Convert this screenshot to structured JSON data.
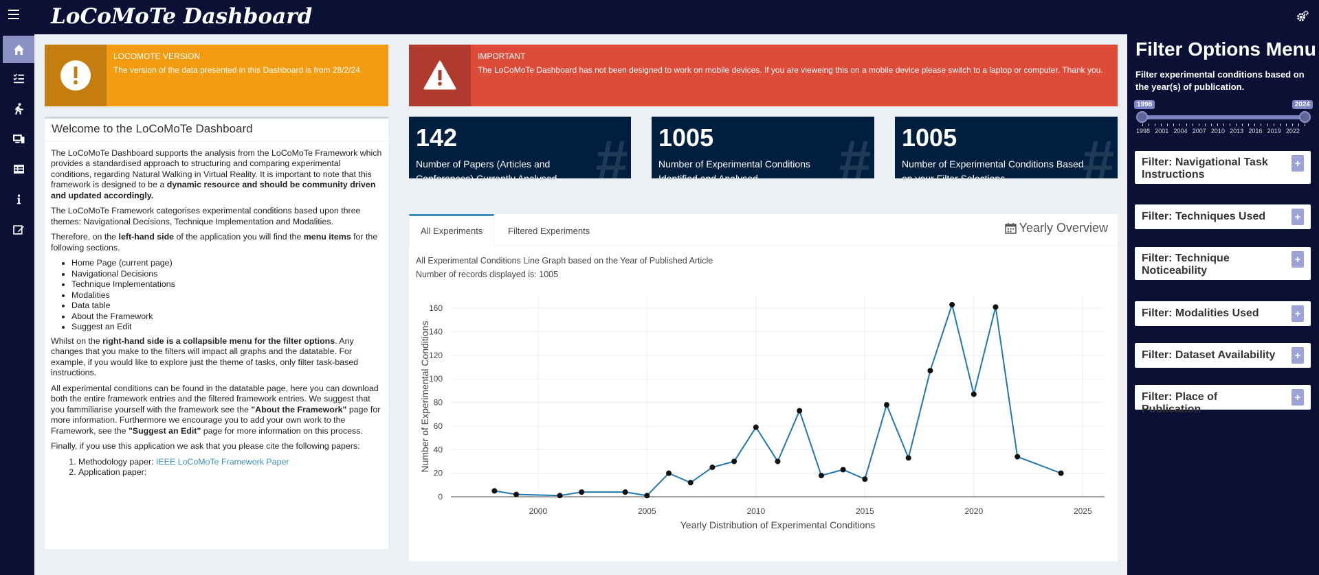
{
  "app": {
    "title": "LoCoMoTe Dashboard"
  },
  "sidebar_left": {
    "items": [
      {
        "name": "home-icon",
        "active": true
      },
      {
        "name": "tasks-icon"
      },
      {
        "name": "walking-icon"
      },
      {
        "name": "devices-icon"
      },
      {
        "name": "table-icon"
      },
      {
        "name": "info-icon"
      },
      {
        "name": "edit-icon"
      }
    ]
  },
  "version_box": {
    "heading": "LOCOMOTE VERSION",
    "text": "The version of the data presented in this Dashboard is from 28/2/24.",
    "color": "#f39c12"
  },
  "important_box": {
    "heading": "IMPORTANT",
    "text": "The LoCoMoTe Dashboard has not been designed to work on mobile devices. If you are vieweing this on a mobile device please switch to a laptop or computer. Thank you.",
    "color": "#dd4b39"
  },
  "stats": [
    {
      "value": "142",
      "label": "Number of Papers (Articles and Conferences) Currently Analysed"
    },
    {
      "value": "1005",
      "label": "Number of Experimental Conditions Identified and Analysed"
    },
    {
      "value": "1005",
      "label": "Number of Experimental Conditions Based on your Filter Selections"
    }
  ],
  "welcome": {
    "title": "Welcome to the LoCoMoTe Dashboard",
    "p1_a": "The LoCoMoTe Dashboard supports the analysis from the LoCoMoTe Framework which provides a standardised approach to structuring and comparing experimental conditions, regarding Natural Walking in Virtual Reality. It is important to note that this framework is designed to be a ",
    "p1_b": "dynamic resource and should be community driven and updated accordingly.",
    "p2": "The LoCoMoTe Framework categorises experimental conditions based upon three themes: Navigational Decisions, Technique Implementation and Modalities.",
    "p3_a": "Therefore, on the ",
    "p3_b": "left-hand side",
    "p3_c": " of the application you will find the ",
    "p3_d": "menu items",
    "p3_e": " for the following sections.",
    "list": [
      "Home Page (current page)",
      "Navigational Decisions",
      "Technique Implementations",
      "Modalities",
      "Data table",
      "About the Framework",
      "Suggest an Edit"
    ],
    "p4_a": "Whilst on the ",
    "p4_b": "right-hand side is a collapsible menu for the filter options",
    "p4_c": ". Any changes that you make to the filters will impact all graphs and the datatable. For example, if you would like to explore just the theme of tasks, only filter task-based instructions.",
    "p5_a": "All experimental conditions can be found in the datatable page, here you can download both the entire framework entries and the filtered framework entries. We suggest that you fammiliarise yourself with the framework see the ",
    "p5_b": "\"About the Framework\"",
    "p5_c": " page for more information. Furthermore we encourage you to add your own work to the Framework, see the ",
    "p5_d": "\"Suggest an Edit\"",
    "p5_e": " page for more information on this process.",
    "p6": "Finally, if you use this application we ask that you please cite the following papers:",
    "cite1_label": "Methodology paper: ",
    "cite1_link": "IEEE LoCoMoTe Framework Paper",
    "cite2_label": "Application paper:"
  },
  "tabs": {
    "items": [
      "All Experiments",
      "Filtered Experiments"
    ],
    "active": 0,
    "header": "Yearly Overview"
  },
  "chart_desc": {
    "line1": "All Experimental Conditions Line Graph based on the Year of Published Article",
    "line2": "Number of records displayed is: 1005"
  },
  "chart_data": {
    "type": "line",
    "xlabel": "Yearly Distribution of Experimental Conditions",
    "ylabel": "Number of Experimental Conditions",
    "x": [
      1998,
      1999,
      2001,
      2002,
      2004,
      2005,
      2006,
      2007,
      2008,
      2009,
      2010,
      2011,
      2012,
      2013,
      2014,
      2015,
      2016,
      2017,
      2018,
      2019,
      2020,
      2021,
      2022,
      2024
    ],
    "y": [
      5,
      2,
      1,
      4,
      4,
      1,
      20,
      12,
      25,
      30,
      59,
      30,
      73,
      18,
      23,
      15,
      78,
      33,
      107,
      163,
      87,
      161,
      34,
      20
    ],
    "xlim": [
      1996,
      2026
    ],
    "ylim": [
      0,
      170
    ],
    "xticks": [
      2000,
      2005,
      2010,
      2015,
      2020,
      2025
    ],
    "yticks": [
      0,
      20,
      40,
      60,
      80,
      100,
      120,
      140,
      160
    ],
    "color": "#1f77b4",
    "grid": true
  },
  "filter_menu": {
    "title": "Filter Options Menu",
    "description": "Filter experimental conditions based on the year(s) of publication.",
    "slider": {
      "min": 1998,
      "max": 2024,
      "from": 1998,
      "to": 2024,
      "from_label": "1998",
      "to_label": "2024",
      "tick_labels": [
        "1998",
        "2001",
        "2004",
        "2007",
        "2010",
        "2013",
        "2016",
        "2019",
        "2022"
      ]
    },
    "filters": [
      "Filter: Navigational Task Instructions",
      "Filter: Techniques Used",
      "Filter: Technique Noticeability",
      "Filter: Modalities Used",
      "Filter: Dataset Availability",
      "Filter: Place of Publication"
    ],
    "plus_label": "+"
  }
}
